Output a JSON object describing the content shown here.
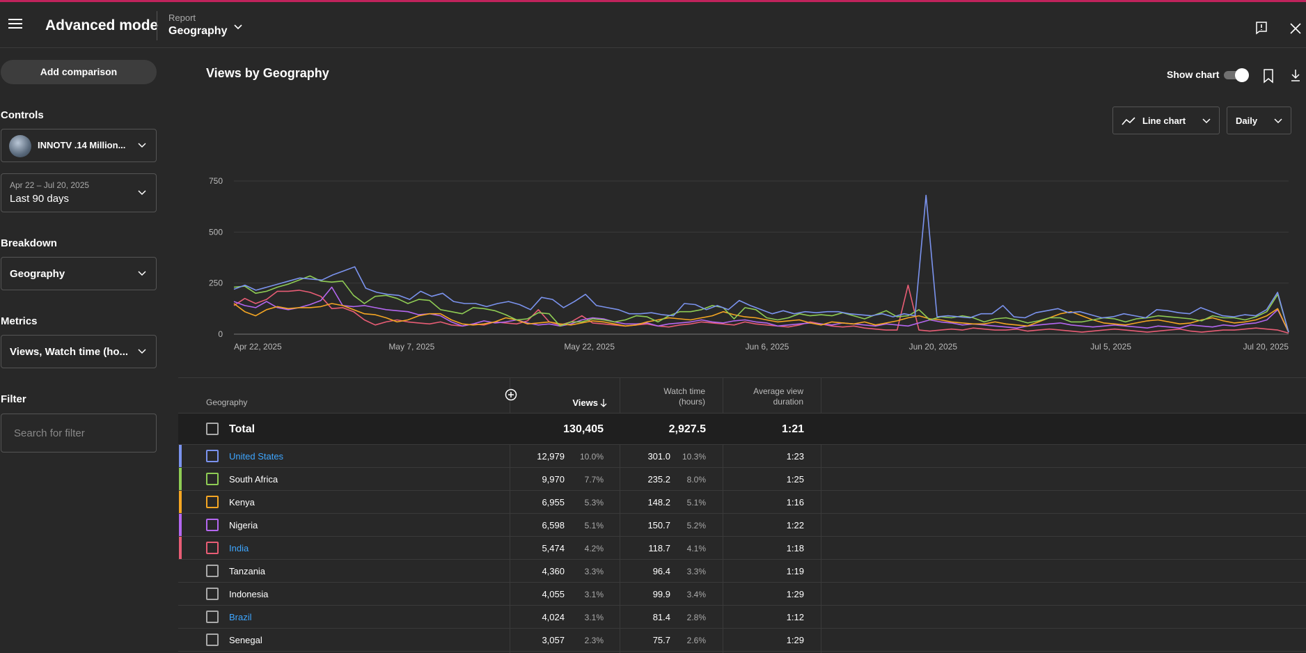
{
  "header": {
    "title": "Advanced mode",
    "report_label": "Report",
    "report_value": "Geography"
  },
  "sidebar": {
    "add_comparison": "Add comparison",
    "controls_heading": "Controls",
    "channel_name": "INNOTV .14 Million...",
    "date_range": "Apr 22 – Jul 20, 2025",
    "date_period": "Last 90 days",
    "breakdown_heading": "Breakdown",
    "breakdown_value": "Geography",
    "metrics_heading": "Metrics",
    "metrics_value": "Views, Watch time (ho...",
    "filter_heading": "Filter",
    "filter_placeholder": "Search for filter"
  },
  "main": {
    "chart_title": "Views by Geography",
    "show_chart_label": "Show chart",
    "show_chart_on": true,
    "chart_type": "Line chart",
    "interval": "Daily"
  },
  "chart_data": {
    "type": "line",
    "ylim": [
      0,
      750
    ],
    "yticks": [
      "750",
      "500",
      "250",
      "0"
    ],
    "xtick_labels": [
      "Apr 22, 2025",
      "May 7, 2025",
      "May 22, 2025",
      "Jun 6, 2025",
      "Jun 20, 2025",
      "Jul 5, 2025",
      "Jul 20, 2025"
    ],
    "x_start": "2025-04-22",
    "x_end": "2025-07-20",
    "series": [
      {
        "name": "United States",
        "color": "#7b93ee",
        "values": [
          220,
          240,
          215,
          230,
          245,
          260,
          275,
          270,
          265,
          290,
          310,
          330,
          225,
          205,
          195,
          190,
          170,
          210,
          185,
          200,
          160,
          150,
          150,
          135,
          150,
          160,
          145,
          120,
          180,
          170,
          130,
          160,
          195,
          140,
          130,
          120,
          100,
          100,
          105,
          95,
          90,
          150,
          145,
          120,
          140,
          120,
          165,
          140,
          120,
          100,
          115,
          100,
          110,
          105,
          110,
          110,
          100,
          95,
          90,
          100,
          85,
          100,
          90,
          680,
          85,
          90,
          85,
          80,
          100,
          100,
          140,
          85,
          80,
          105,
          115,
          125,
          105,
          110,
          95,
          80,
          85,
          100,
          90,
          80,
          120,
          115,
          105,
          100,
          130,
          110,
          90,
          85,
          95,
          90,
          120,
          205,
          10
        ]
      },
      {
        "name": "South Africa",
        "color": "#8fcc54",
        "values": [
          230,
          235,
          200,
          210,
          230,
          245,
          265,
          285,
          260,
          255,
          260,
          190,
          150,
          185,
          190,
          175,
          150,
          170,
          165,
          120,
          110,
          100,
          130,
          125,
          115,
          95,
          70,
          75,
          105,
          100,
          40,
          60,
          60,
          75,
          70,
          60,
          70,
          90,
          85,
          60,
          90,
          110,
          110,
          120,
          140,
          130,
          75,
          130,
          120,
          80,
          70,
          80,
          100,
          90,
          95,
          90,
          105,
          90,
          75,
          95,
          115,
          85,
          90,
          120,
          70,
          85,
          80,
          90,
          80,
          60,
          75,
          80,
          70,
          55,
          65,
          80,
          80,
          60,
          60,
          70,
          80,
          75,
          60,
          75,
          80,
          90,
          85,
          80,
          75,
          65,
          90,
          80,
          80,
          70,
          85,
          110,
          195,
          10
        ]
      },
      {
        "name": "Kenya",
        "color": "#f5a623",
        "values": [
          150,
          110,
          90,
          120,
          135,
          125,
          130,
          130,
          135,
          150,
          140,
          120,
          100,
          95,
          80,
          60,
          70,
          90,
          100,
          100,
          70,
          50,
          45,
          50,
          60,
          80,
          70,
          50,
          55,
          60,
          50,
          45,
          55,
          65,
          60,
          50,
          40,
          45,
          60,
          70,
          80,
          75,
          70,
          80,
          90,
          110,
          95,
          85,
          80,
          70,
          60,
          65,
          70,
          55,
          45,
          60,
          55,
          50,
          60,
          45,
          55,
          65,
          80,
          90,
          75,
          70,
          60,
          55,
          50,
          50,
          60,
          50,
          45,
          40,
          60,
          80,
          100,
          110,
          90,
          70,
          55,
          50,
          45,
          55,
          65,
          70,
          60,
          50,
          55,
          70,
          80,
          65,
          55,
          60,
          70,
          90,
          125,
          10
        ]
      },
      {
        "name": "Nigeria",
        "color": "#b467f0",
        "values": [
          160,
          140,
          130,
          160,
          130,
          120,
          130,
          145,
          165,
          230,
          140,
          135,
          140,
          130,
          120,
          115,
          110,
          95,
          100,
          90,
          60,
          40,
          50,
          65,
          55,
          60,
          70,
          55,
          45,
          50,
          40,
          50,
          70,
          80,
          75,
          60,
          50,
          50,
          55,
          40,
          50,
          55,
          60,
          70,
          60,
          55,
          65,
          70,
          60,
          55,
          40,
          45,
          50,
          55,
          50,
          45,
          55,
          50,
          45,
          40,
          50,
          45,
          40,
          55,
          70,
          60,
          55,
          45,
          50,
          45,
          40,
          35,
          30,
          40,
          45,
          50,
          55,
          45,
          40,
          35,
          40,
          45,
          40,
          35,
          30,
          40,
          35,
          30,
          45,
          40,
          35,
          45,
          40,
          50,
          55,
          70,
          120,
          10
        ]
      },
      {
        "name": "India",
        "color": "#e85d75",
        "values": [
          140,
          175,
          150,
          170,
          210,
          210,
          215,
          205,
          185,
          125,
          130,
          110,
          70,
          45,
          60,
          70,
          60,
          55,
          50,
          60,
          45,
          40,
          50,
          45,
          60,
          55,
          50,
          65,
          120,
          60,
          45,
          60,
          90,
          55,
          50,
          45,
          40,
          45,
          50,
          40,
          35,
          45,
          50,
          60,
          55,
          50,
          45,
          60,
          50,
          45,
          40,
          35,
          45,
          60,
          50,
          40,
          35,
          40,
          30,
          25,
          20,
          20,
          240,
          20,
          15,
          20,
          25,
          20,
          30,
          25,
          20,
          20,
          25,
          15,
          20,
          25,
          20,
          15,
          10,
          15,
          20,
          25,
          20,
          15,
          10,
          15,
          20,
          25,
          15,
          10,
          15,
          20,
          20,
          25,
          30,
          25,
          20,
          5
        ]
      }
    ]
  },
  "table": {
    "headers": {
      "geography": "Geography",
      "views": "Views",
      "watch_time_1": "Watch time",
      "watch_time_2": "(hours)",
      "avg_1": "Average view",
      "avg_2": "duration"
    },
    "total": {
      "label": "Total",
      "views": "130,405",
      "watch_time": "2,927.5",
      "avg": "1:21"
    },
    "rows": [
      {
        "name": "United States",
        "views": "12,979",
        "views_pct": "10.0%",
        "watch": "301.0",
        "watch_pct": "10.3%",
        "avg": "1:23",
        "color": "#7b93ee",
        "link": true
      },
      {
        "name": "South Africa",
        "views": "9,970",
        "views_pct": "7.7%",
        "watch": "235.2",
        "watch_pct": "8.0%",
        "avg": "1:25",
        "color": "#8fcc54",
        "link": false
      },
      {
        "name": "Kenya",
        "views": "6,955",
        "views_pct": "5.3%",
        "watch": "148.2",
        "watch_pct": "5.1%",
        "avg": "1:16",
        "color": "#f5a623",
        "link": false
      },
      {
        "name": "Nigeria",
        "views": "6,598",
        "views_pct": "5.1%",
        "watch": "150.7",
        "watch_pct": "5.2%",
        "avg": "1:22",
        "color": "#b467f0",
        "link": false
      },
      {
        "name": "India",
        "views": "5,474",
        "views_pct": "4.2%",
        "watch": "118.7",
        "watch_pct": "4.1%",
        "avg": "1:18",
        "color": "#e85d75",
        "link": true
      },
      {
        "name": "Tanzania",
        "views": "4,360",
        "views_pct": "3.3%",
        "watch": "96.4",
        "watch_pct": "3.3%",
        "avg": "1:19",
        "color": "",
        "link": false
      },
      {
        "name": "Indonesia",
        "views": "4,055",
        "views_pct": "3.1%",
        "watch": "99.9",
        "watch_pct": "3.4%",
        "avg": "1:29",
        "color": "",
        "link": false
      },
      {
        "name": "Brazil",
        "views": "4,024",
        "views_pct": "3.1%",
        "watch": "81.4",
        "watch_pct": "2.8%",
        "avg": "1:12",
        "color": "",
        "link": true
      },
      {
        "name": "Senegal",
        "views": "3,057",
        "views_pct": "2.3%",
        "watch": "75.7",
        "watch_pct": "2.6%",
        "avg": "1:29",
        "color": "",
        "link": false
      }
    ]
  }
}
